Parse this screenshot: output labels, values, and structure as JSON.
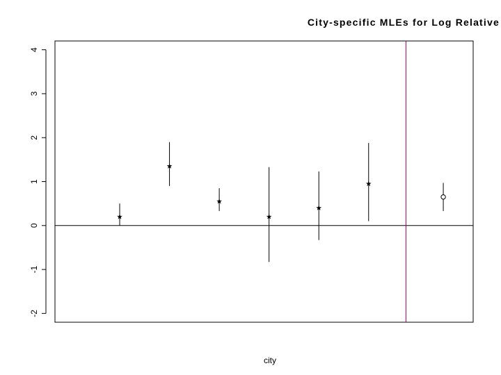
{
  "chart_data": {
    "type": "scatter",
    "title": "City-specific MLEs for Log Relative",
    "xlabel": "city",
    "ylabel": "",
    "ylim": [
      -2.2,
      4.2
    ],
    "xlim": [
      -0.3,
      8.1
    ],
    "yticks": [
      "-2",
      "-1",
      "0",
      "1",
      "2",
      "3",
      "4"
    ],
    "grid": false,
    "reference_line": {
      "y": 0,
      "color": "#000000"
    },
    "separator_line": {
      "x": 6.75,
      "color": "#990066"
    },
    "series": [
      {
        "marker": "star",
        "points": [
          {
            "x": 1,
            "y": 0.2,
            "lower": 0.0,
            "upper": 0.5
          },
          {
            "x": 2,
            "y": 1.35,
            "lower": 0.9,
            "upper": 1.9
          },
          {
            "x": 3,
            "y": 0.55,
            "lower": 0.33,
            "upper": 0.85
          },
          {
            "x": 4,
            "y": 0.2,
            "lower": -0.83,
            "upper": 1.33
          },
          {
            "x": 5,
            "y": 0.4,
            "lower": -0.33,
            "upper": 1.23
          },
          {
            "x": 6,
            "y": 0.95,
            "lower": 0.1,
            "upper": 1.88
          }
        ]
      },
      {
        "marker": "circle",
        "points": [
          {
            "x": 7.5,
            "y": 0.65,
            "lower": 0.33,
            "upper": 0.97
          }
        ]
      }
    ]
  }
}
